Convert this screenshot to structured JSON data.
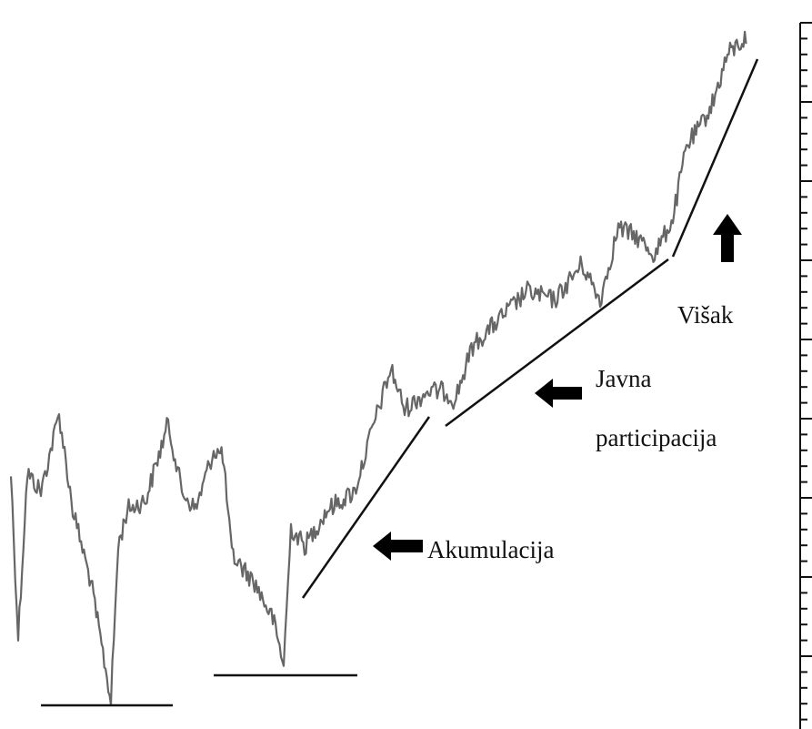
{
  "annotations": [
    {
      "lines": [
        "Akumulacija"
      ]
    },
    {
      "lines": [
        "Javna",
        "participacija"
      ]
    },
    {
      "lines": [
        "Višak"
      ]
    }
  ]
}
